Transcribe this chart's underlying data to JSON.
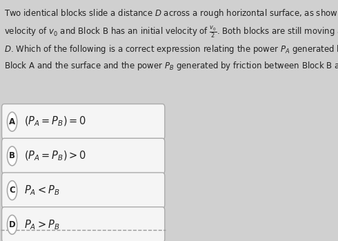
{
  "background_color": "#d0d0d0",
  "title_text": "Two identical blocks slide a distance $D$ across a rough horizontal surface, as shown. Block A has an initial\nvelocity of $v_0$ and Block B has an initial velocity of $\\frac{v_0}{2}$. Both blocks are still moving after sliding a distance\n$D$. Which of the following is a correct expression relating the power $P_A$ generated by friction between\nBlock A and the surface and the power $P_B$ generated by friction between Block B and the surface?",
  "options": [
    {
      "label": "A",
      "text": "$(P_A = P_B) = 0$"
    },
    {
      "label": "B",
      "text": "$(P_A = P_B) > 0$"
    },
    {
      "label": "C",
      "text": "$P_A < P_B$"
    },
    {
      "label": "D",
      "text": "$P_A > P_B$"
    }
  ],
  "box_bg": "#f5f5f5",
  "box_edge": "#aaaaaa",
  "text_color": "#222222",
  "title_fontsize": 8.5,
  "option_fontsize": 10.5,
  "label_fontsize": 8.5
}
